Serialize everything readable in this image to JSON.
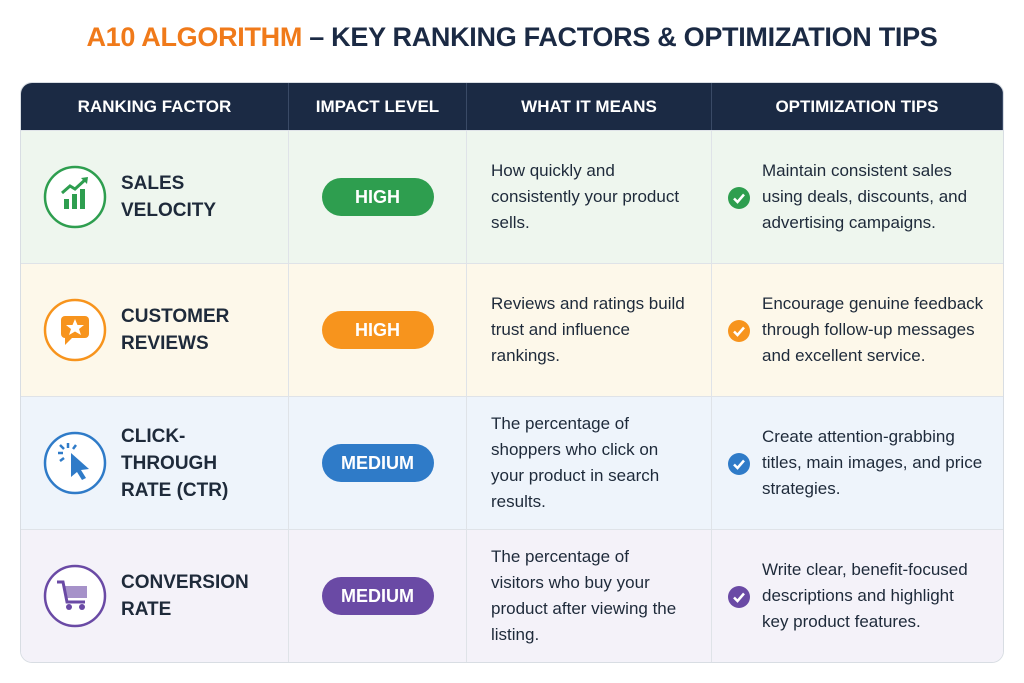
{
  "header": {
    "title_highlight": "A10 ALGORITHM",
    "title_rest": "– KEY RANKING FACTORS & OPTIMIZATION TIPS"
  },
  "table": {
    "columns": [
      "RANKING FACTOR",
      "IMPACT LEVEL",
      "WHAT IT MEANS",
      "OPTIMIZATION TIPS"
    ],
    "rows": [
      [
        "SALES VELOCITY",
        "HIGH",
        "How quickly and consistently your product sells.",
        "Maintain consistent sales using deals, discounts, and advertising campaigns."
      ],
      [
        "CUSTOMER REVIEWS",
        "HIGH",
        "Reviews and ratings build trust and influence rankings.",
        "Encourage genuine feedback through follow-up messages and excellent service."
      ],
      [
        "CLICK-THROUGH RATE (CTR)",
        "MEDIUM",
        "The percentage of shoppers who click on your product in search results.",
        "Create attention-grabbing titles, main images, and price strategies."
      ],
      [
        "CONVERSION RATE",
        "MEDIUM",
        "The percentage of visitors who buy your product after viewing the listing.",
        "Write clear, benefit-focused descriptions and highlight key product features."
      ]
    ]
  }
}
